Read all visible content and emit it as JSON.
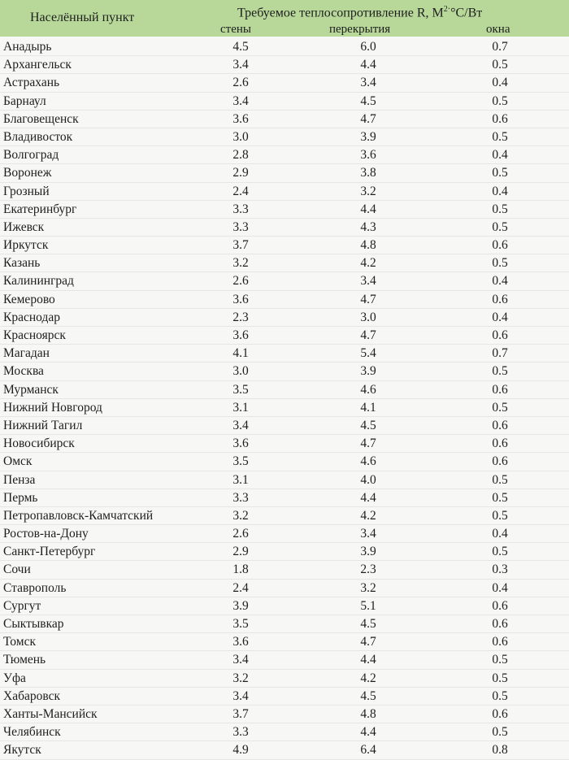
{
  "header": {
    "city": "Населённый пункт",
    "title": "Требуемое теплосопротивление R, М",
    "title_sup": "2·",
    "title_unit": "°С/Вт",
    "col_walls": "стены",
    "col_roof": "перекрытия",
    "col_windows": "окна"
  },
  "rows": [
    {
      "city": "Анадырь",
      "walls": "4.5",
      "roof": "6.0",
      "windows": "0.7"
    },
    {
      "city": "Архангельск",
      "walls": "3.4",
      "roof": "4.4",
      "windows": "0.5"
    },
    {
      "city": "Астрахань",
      "walls": "2.6",
      "roof": "3.4",
      "windows": "0.4"
    },
    {
      "city": "Барнаул",
      "walls": "3.4",
      "roof": "4.5",
      "windows": "0.5"
    },
    {
      "city": "Благовещенск",
      "walls": "3.6",
      "roof": "4.7",
      "windows": "0.6"
    },
    {
      "city": "Владивосток",
      "walls": "3.0",
      "roof": "3.9",
      "windows": "0.5"
    },
    {
      "city": "Волгоград",
      "walls": "2.8",
      "roof": "3.6",
      "windows": "0.4"
    },
    {
      "city": "Воронеж",
      "walls": "2.9",
      "roof": "3.8",
      "windows": "0.5"
    },
    {
      "city": "Грозный",
      "walls": "2.4",
      "roof": "3.2",
      "windows": "0.4"
    },
    {
      "city": "Екатеринбург",
      "walls": "3.3",
      "roof": "4.4",
      "windows": "0.5"
    },
    {
      "city": "Ижевск",
      "walls": "3.3",
      "roof": "4.3",
      "windows": "0.5"
    },
    {
      "city": "Иркутск",
      "walls": "3.7",
      "roof": "4.8",
      "windows": "0.6"
    },
    {
      "city": "Казань",
      "walls": "3.2",
      "roof": "4.2",
      "windows": "0.5"
    },
    {
      "city": "Калининград",
      "walls": "2.6",
      "roof": "3.4",
      "windows": "0.4"
    },
    {
      "city": "Кемерово",
      "walls": "3.6",
      "roof": "4.7",
      "windows": "0.6"
    },
    {
      "city": "Краснодар",
      "walls": "2.3",
      "roof": "3.0",
      "windows": "0.4"
    },
    {
      "city": "Красноярск",
      "walls": "3.6",
      "roof": "4.7",
      "windows": "0.6"
    },
    {
      "city": "Магадан",
      "walls": "4.1",
      "roof": "5.4",
      "windows": "0.7"
    },
    {
      "city": "Москва",
      "walls": "3.0",
      "roof": "3.9",
      "windows": "0.5"
    },
    {
      "city": "Мурманск",
      "walls": "3.5",
      "roof": "4.6",
      "windows": "0.6"
    },
    {
      "city": "Нижний Новгород",
      "walls": "3.1",
      "roof": "4.1",
      "windows": "0.5"
    },
    {
      "city": "Нижний Тагил",
      "walls": "3.4",
      "roof": "4.5",
      "windows": "0.6"
    },
    {
      "city": "Новосибирск",
      "walls": "3.6",
      "roof": "4.7",
      "windows": "0.6"
    },
    {
      "city": "Омск",
      "walls": "3.5",
      "roof": "4.6",
      "windows": "0.6"
    },
    {
      "city": "Пенза",
      "walls": "3.1",
      "roof": "4.0",
      "windows": "0.5"
    },
    {
      "city": "Пермь",
      "walls": "3.3",
      "roof": "4.4",
      "windows": "0.5"
    },
    {
      "city": "Петропавловск-Камчатский",
      "walls": "3.2",
      "roof": "4.2",
      "windows": "0.5"
    },
    {
      "city": "Ростов-на-Дону",
      "walls": "2.6",
      "roof": "3.4",
      "windows": "0.4"
    },
    {
      "city": "Санкт-Петербург",
      "walls": "2.9",
      "roof": "3.9",
      "windows": "0.5"
    },
    {
      "city": "Сочи",
      "walls": "1.8",
      "roof": "2.3",
      "windows": "0.3"
    },
    {
      "city": "Ставрополь",
      "walls": "2.4",
      "roof": "3.2",
      "windows": "0.4"
    },
    {
      "city": "Сургут",
      "walls": "3.9",
      "roof": "5.1",
      "windows": "0.6"
    },
    {
      "city": "Сыктывкар",
      "walls": "3.5",
      "roof": "4.5",
      "windows": "0.6"
    },
    {
      "city": "Томск",
      "walls": "3.6",
      "roof": "4.7",
      "windows": "0.6"
    },
    {
      "city": "Тюмень",
      "walls": "3.4",
      "roof": "4.4",
      "windows": "0.5"
    },
    {
      "city": "Уфа",
      "walls": "3.2",
      "roof": "4.2",
      "windows": "0.5"
    },
    {
      "city": "Хабаровск",
      "walls": "3.4",
      "roof": "4.5",
      "windows": "0.5"
    },
    {
      "city": "Ханты-Мансийск",
      "walls": "3.7",
      "roof": "4.8",
      "windows": "0.6"
    },
    {
      "city": "Челябинск",
      "walls": "3.3",
      "roof": "4.4",
      "windows": "0.5"
    },
    {
      "city": "Якутск",
      "walls": "4.9",
      "roof": "6.4",
      "windows": "0.8"
    }
  ]
}
